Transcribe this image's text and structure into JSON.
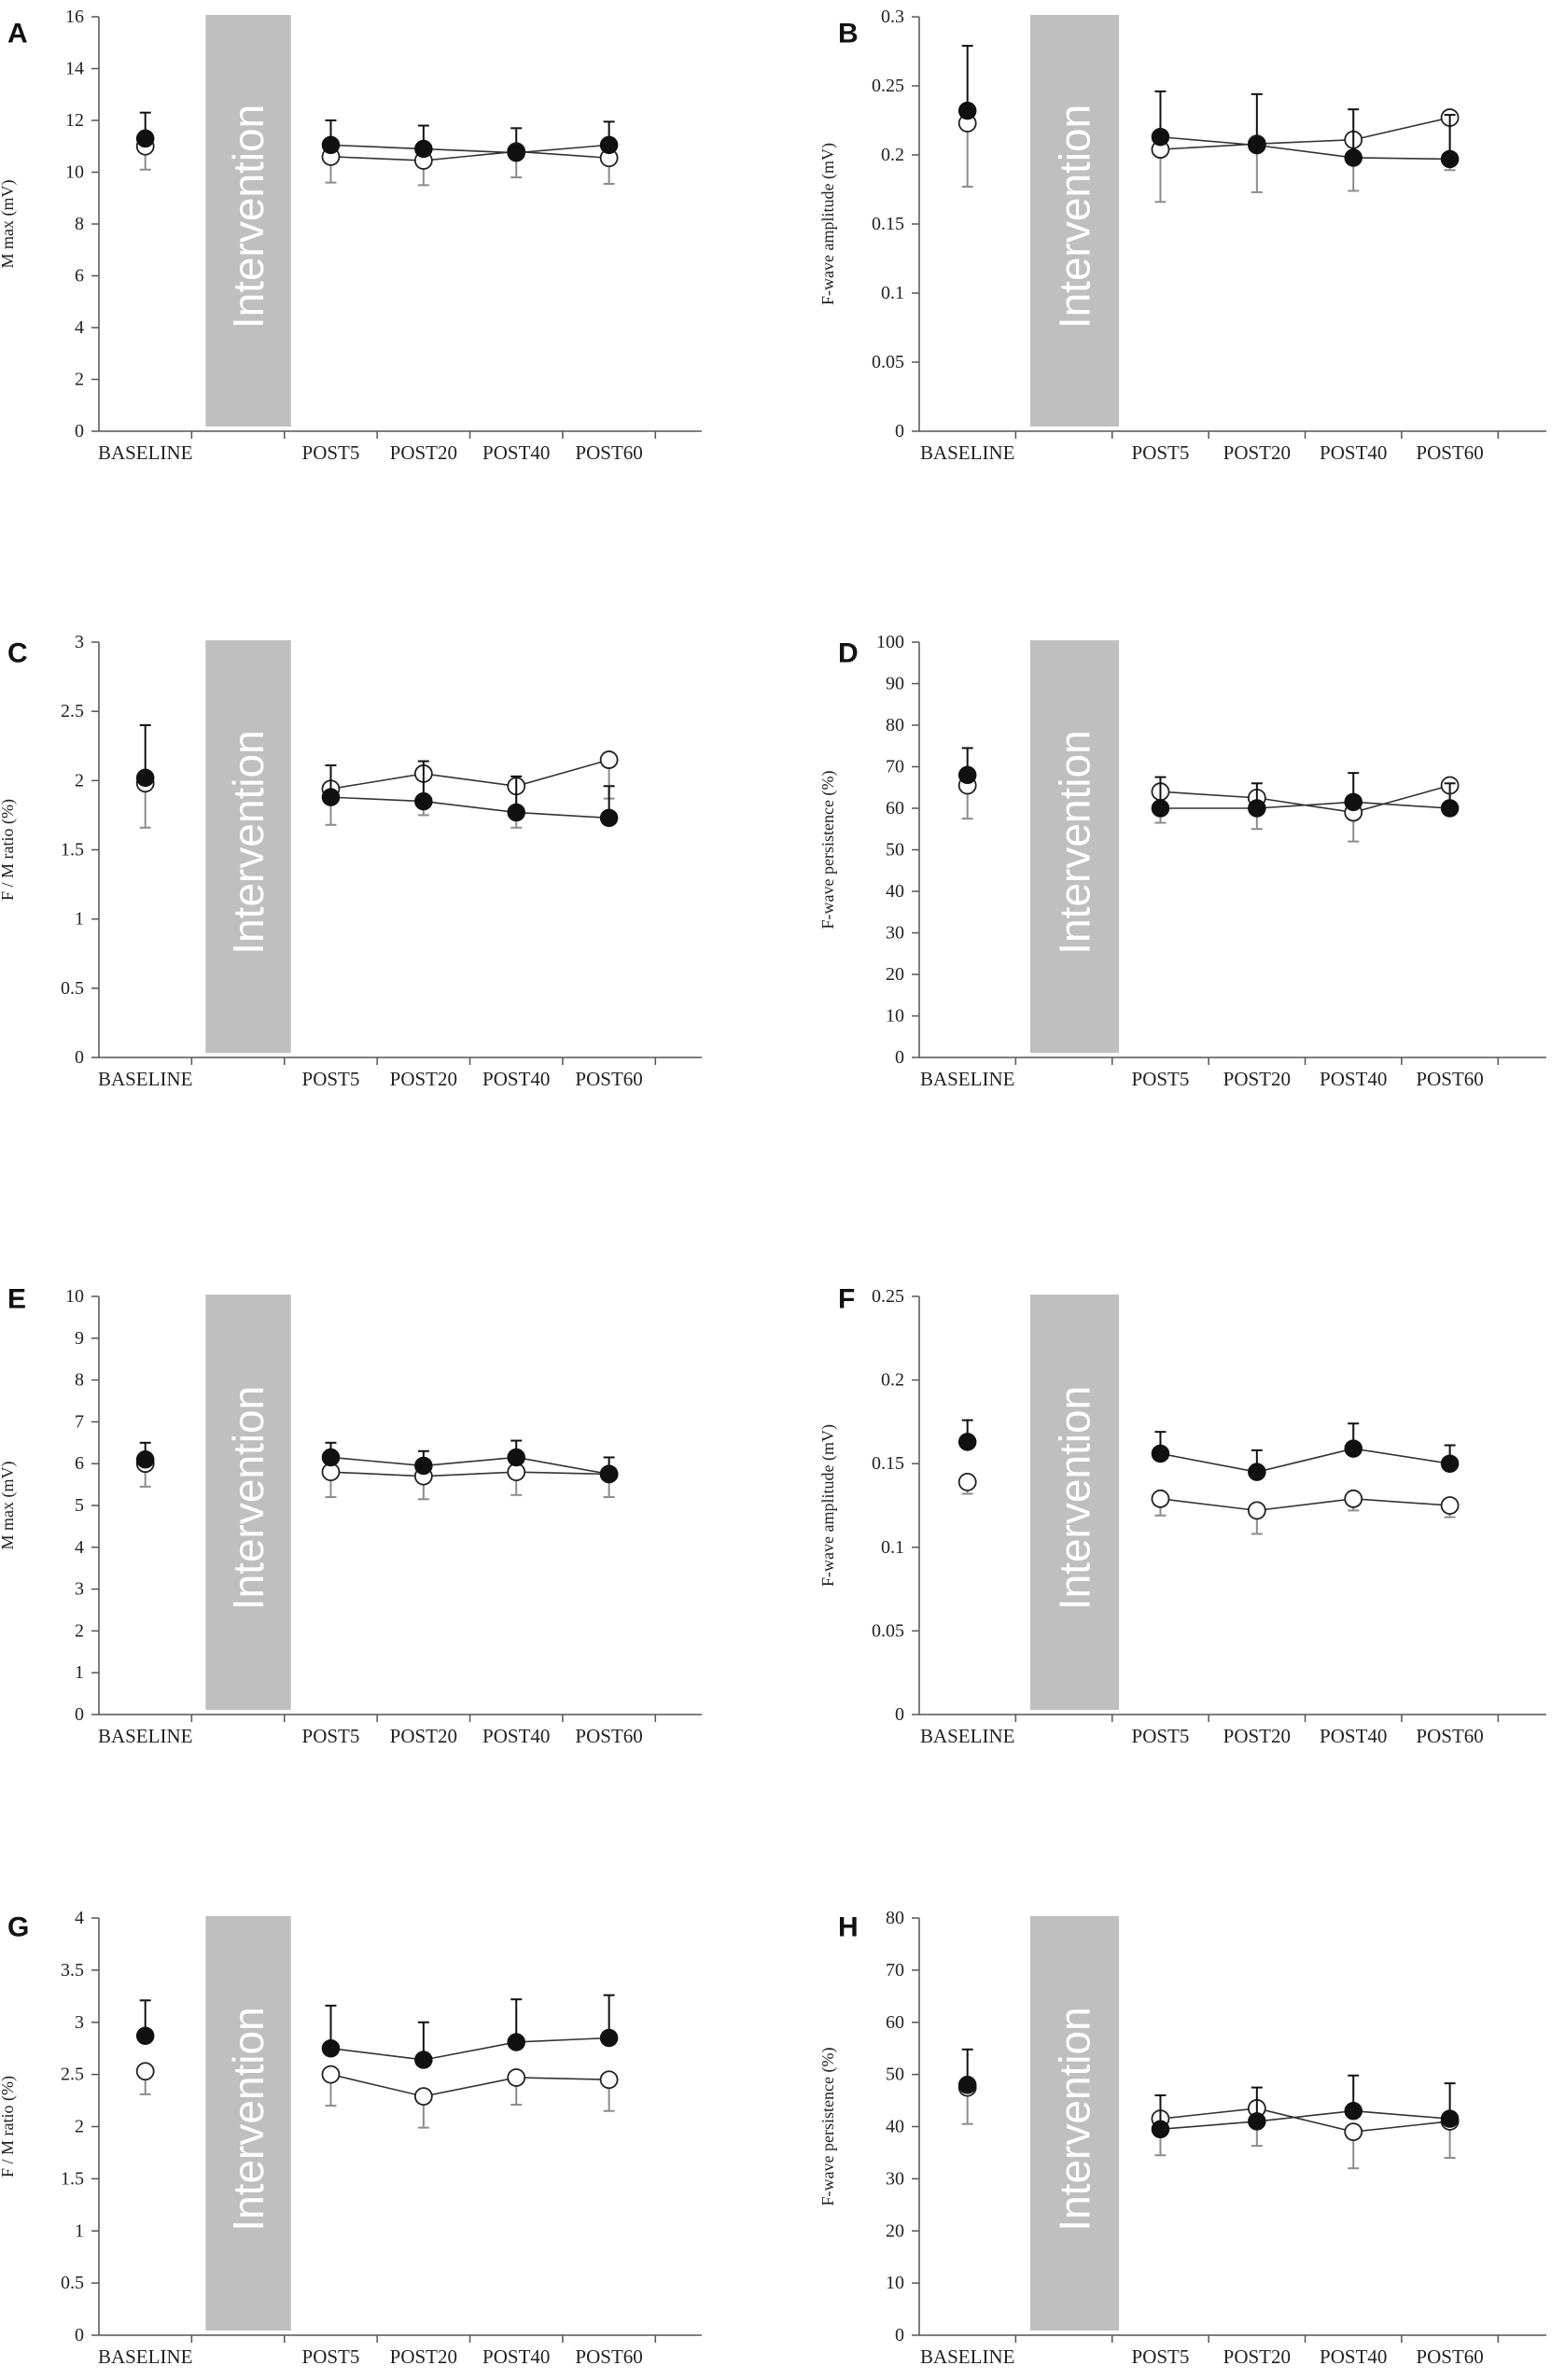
{
  "chart_data": [
    {
      "type": "line",
      "panel": "A",
      "ylabel": "M max (mV)",
      "ylim": [
        0,
        16
      ],
      "yticks": [
        "0",
        "2",
        "4",
        "6",
        "8",
        "10",
        "12",
        "14",
        "16"
      ],
      "categories": [
        "BASELINE",
        "POST5",
        "POST20",
        "POST40",
        "POST60"
      ],
      "band_label": "Intervention",
      "series": [
        {
          "name": "filled",
          "values": [
            11.3,
            11.05,
            10.9,
            10.75,
            11.05
          ],
          "errors": [
            1.0,
            0.95,
            0.9,
            0.95,
            0.9
          ]
        },
        {
          "name": "open",
          "values": [
            11.0,
            10.6,
            10.45,
            10.8,
            10.55
          ],
          "errors": [
            0.9,
            1.0,
            0.95,
            1.0,
            1.0
          ]
        }
      ]
    },
    {
      "type": "line",
      "panel": "B",
      "ylabel": "F-wave amplitude (mV)",
      "ylim": [
        0,
        0.3
      ],
      "yticks": [
        "0",
        "0.05",
        "0.1",
        "0.15",
        "0.2",
        "0.25",
        "0.3"
      ],
      "categories": [
        "BASELINE",
        "POST5",
        "POST20",
        "POST40",
        "POST60"
      ],
      "band_label": "Intervention",
      "series": [
        {
          "name": "filled",
          "values": [
            0.232,
            0.213,
            0.207,
            0.198,
            0.197
          ],
          "errors": [
            0.047,
            0.033,
            0.037,
            0.035,
            0.032
          ]
        },
        {
          "name": "open",
          "values": [
            0.223,
            0.204,
            0.208,
            0.211,
            0.227
          ],
          "errors": [
            0.046,
            0.038,
            0.035,
            0.037,
            0.038
          ]
        }
      ]
    },
    {
      "type": "line",
      "panel": "C",
      "ylabel": "F / M ratio (%)",
      "ylim": [
        0,
        3
      ],
      "yticks": [
        "0",
        "0.5",
        "1",
        "1.5",
        "2",
        "2.5",
        "3"
      ],
      "categories": [
        "BASELINE",
        "POST5",
        "POST20",
        "POST40",
        "POST60"
      ],
      "band_label": "Intervention",
      "series": [
        {
          "name": "filled",
          "values": [
            2.02,
            1.88,
            1.85,
            1.77,
            1.73
          ],
          "errors": [
            0.38,
            0.23,
            0.29,
            0.26,
            0.23
          ]
        },
        {
          "name": "open",
          "values": [
            1.98,
            1.94,
            2.05,
            1.96,
            2.15
          ],
          "errors": [
            0.32,
            0.26,
            0.3,
            0.3,
            0.28
          ]
        }
      ]
    },
    {
      "type": "line",
      "panel": "D",
      "ylabel": "F-wave persistence (%)",
      "ylim": [
        0,
        100
      ],
      "yticks": [
        "0",
        "10",
        "20",
        "30",
        "40",
        "50",
        "60",
        "70",
        "80",
        "90",
        "100"
      ],
      "categories": [
        "BASELINE",
        "POST5",
        "POST20",
        "POST40",
        "POST60"
      ],
      "band_label": "Intervention",
      "series": [
        {
          "name": "filled",
          "values": [
            68,
            60,
            60,
            61.5,
            60
          ],
          "errors": [
            6.5,
            7.5,
            6,
            7,
            6
          ]
        },
        {
          "name": "open",
          "values": [
            65.5,
            64,
            62.5,
            59,
            65.5
          ],
          "errors": [
            8,
            7.5,
            7.5,
            7,
            6.5
          ]
        }
      ]
    },
    {
      "type": "line",
      "panel": "E",
      "ylabel": "M max (mV)",
      "ylim": [
        0,
        10
      ],
      "yticks": [
        "0",
        "1",
        "2",
        "3",
        "4",
        "5",
        "6",
        "7",
        "8",
        "9",
        "10"
      ],
      "categories": [
        "BASELINE",
        "POST5",
        "POST20",
        "POST40",
        "POST60"
      ],
      "band_label": "Intervention",
      "series": [
        {
          "name": "filled",
          "values": [
            6.1,
            6.15,
            5.95,
            6.15,
            5.75
          ],
          "errors": [
            0.4,
            0.35,
            0.35,
            0.4,
            0.4
          ]
        },
        {
          "name": "open",
          "values": [
            6.0,
            5.8,
            5.7,
            5.8,
            5.75
          ],
          "errors": [
            0.55,
            0.6,
            0.55,
            0.55,
            0.55
          ]
        }
      ]
    },
    {
      "type": "line",
      "panel": "F",
      "ylabel": "F-wave amplitude (mV)",
      "ylim": [
        0,
        0.25
      ],
      "yticks": [
        "0",
        "0.05",
        "0.1",
        "0.15",
        "0.2",
        "0.25"
      ],
      "categories": [
        "BASELINE",
        "POST5",
        "POST20",
        "POST40",
        "POST60"
      ],
      "band_label": "Intervention",
      "series": [
        {
          "name": "filled",
          "values": [
            0.163,
            0.156,
            0.145,
            0.159,
            0.15
          ],
          "errors": [
            0.013,
            0.013,
            0.013,
            0.015,
            0.011
          ]
        },
        {
          "name": "open",
          "values": [
            0.139,
            0.129,
            0.122,
            0.129,
            0.125
          ],
          "errors": [
            0.007,
            0.01,
            0.014,
            0.007,
            0.007
          ]
        }
      ]
    },
    {
      "type": "line",
      "panel": "G",
      "ylabel": "F / M ratio (%)",
      "ylim": [
        0,
        4
      ],
      "yticks": [
        "0",
        "0.5",
        "1",
        "1.5",
        "2",
        "2.5",
        "3",
        "3.5",
        "4"
      ],
      "categories": [
        "BASELINE",
        "POST5",
        "POST20",
        "POST40",
        "POST60"
      ],
      "band_label": "Intervention",
      "series": [
        {
          "name": "filled",
          "values": [
            2.87,
            2.75,
            2.64,
            2.81,
            2.85
          ],
          "errors": [
            0.34,
            0.41,
            0.36,
            0.41,
            0.41
          ]
        },
        {
          "name": "open",
          "values": [
            2.53,
            2.5,
            2.29,
            2.47,
            2.45
          ],
          "errors": [
            0.22,
            0.3,
            0.3,
            0.26,
            0.3
          ]
        }
      ]
    },
    {
      "type": "line",
      "panel": "H",
      "ylabel": "F-wave persistence (%)",
      "ylim": [
        0,
        80
      ],
      "yticks": [
        "0",
        "10",
        "20",
        "30",
        "40",
        "50",
        "60",
        "70",
        "80"
      ],
      "categories": [
        "BASELINE",
        "POST5",
        "POST20",
        "POST40",
        "POST60"
      ],
      "band_label": "Intervention",
      "series": [
        {
          "name": "filled",
          "values": [
            48,
            39.5,
            41,
            43,
            41.5
          ],
          "errors": [
            6.8,
            6.5,
            6.5,
            6.8,
            6.8
          ]
        },
        {
          "name": "open",
          "values": [
            47.5,
            41.5,
            43.5,
            39,
            41
          ],
          "errors": [
            7,
            7,
            7.2,
            7,
            7
          ]
        }
      ]
    }
  ]
}
